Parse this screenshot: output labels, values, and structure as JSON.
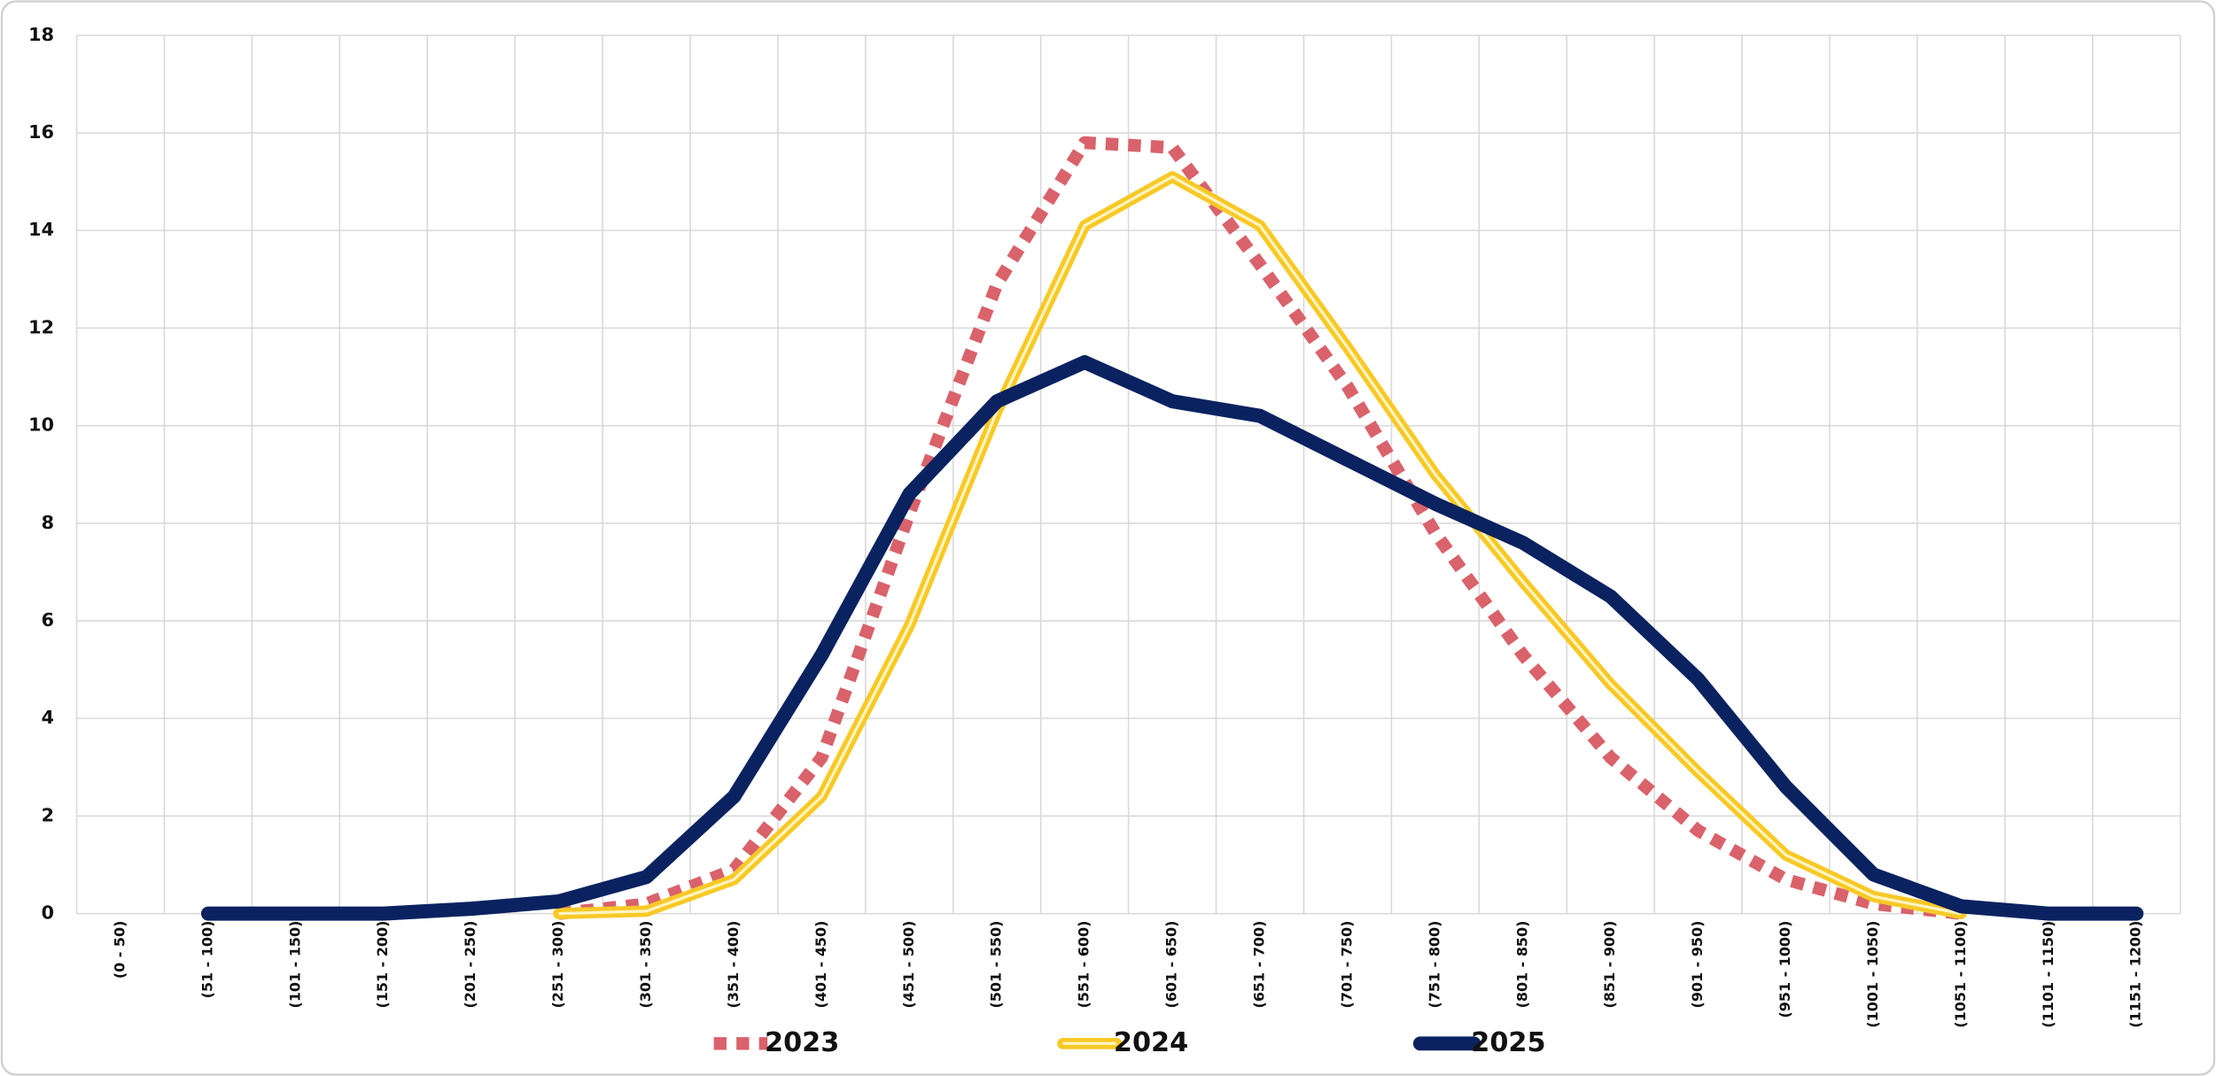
{
  "chart_data": {
    "type": "line",
    "categories": [
      "(0 - 50)",
      "(51 - 100)",
      "(101 - 150)",
      "(151 - 200)",
      "(201 - 250)",
      "(251 - 300)",
      "(301 - 350)",
      "(351 - 400)",
      "(401 - 450)",
      "(451 - 500)",
      "(501 - 550)",
      "(551 - 600)",
      "(601 - 650)",
      "(651 - 700)",
      "(701 - 750)",
      "(751 - 800)",
      "(801 - 850)",
      "(851 - 900)",
      "(901 - 950)",
      "(951 - 1000)",
      "(1001 - 1050)",
      "(1051 - 1100)",
      "(1101 - 1150)",
      "(1151 - 1200)"
    ],
    "series": [
      {
        "name": "2023",
        "color": "#d9626b",
        "line_style": "dotted",
        "values": [
          null,
          null,
          null,
          null,
          null,
          0,
          0.2,
          0.9,
          3.2,
          8.2,
          12.9,
          15.8,
          15.7,
          13.3,
          10.8,
          7.8,
          5.3,
          3.2,
          1.7,
          0.7,
          0.2,
          0,
          null,
          null
        ]
      },
      {
        "name": "2024",
        "color": "#f8c926",
        "line_style": "double",
        "values": [
          null,
          null,
          null,
          null,
          null,
          0,
          0.05,
          0.7,
          2.4,
          5.9,
          10.3,
          14.1,
          15.1,
          14.1,
          11.6,
          9.0,
          6.8,
          4.7,
          2.9,
          1.2,
          0.35,
          0,
          null,
          null
        ]
      },
      {
        "name": "2025",
        "color": "#0a2260",
        "line_style": "solid",
        "values": [
          null,
          0,
          0,
          0,
          0.1,
          0.25,
          0.75,
          2.4,
          5.3,
          8.6,
          10.5,
          11.3,
          10.5,
          10.2,
          9.3,
          8.4,
          7.6,
          6.5,
          4.8,
          2.6,
          0.8,
          0.15,
          0,
          0
        ]
      }
    ],
    "ylim": [
      0,
      18
    ],
    "yticks": [
      0,
      2,
      4,
      6,
      8,
      10,
      12,
      14,
      16,
      18
    ],
    "grid": true,
    "legend": "bottom"
  }
}
